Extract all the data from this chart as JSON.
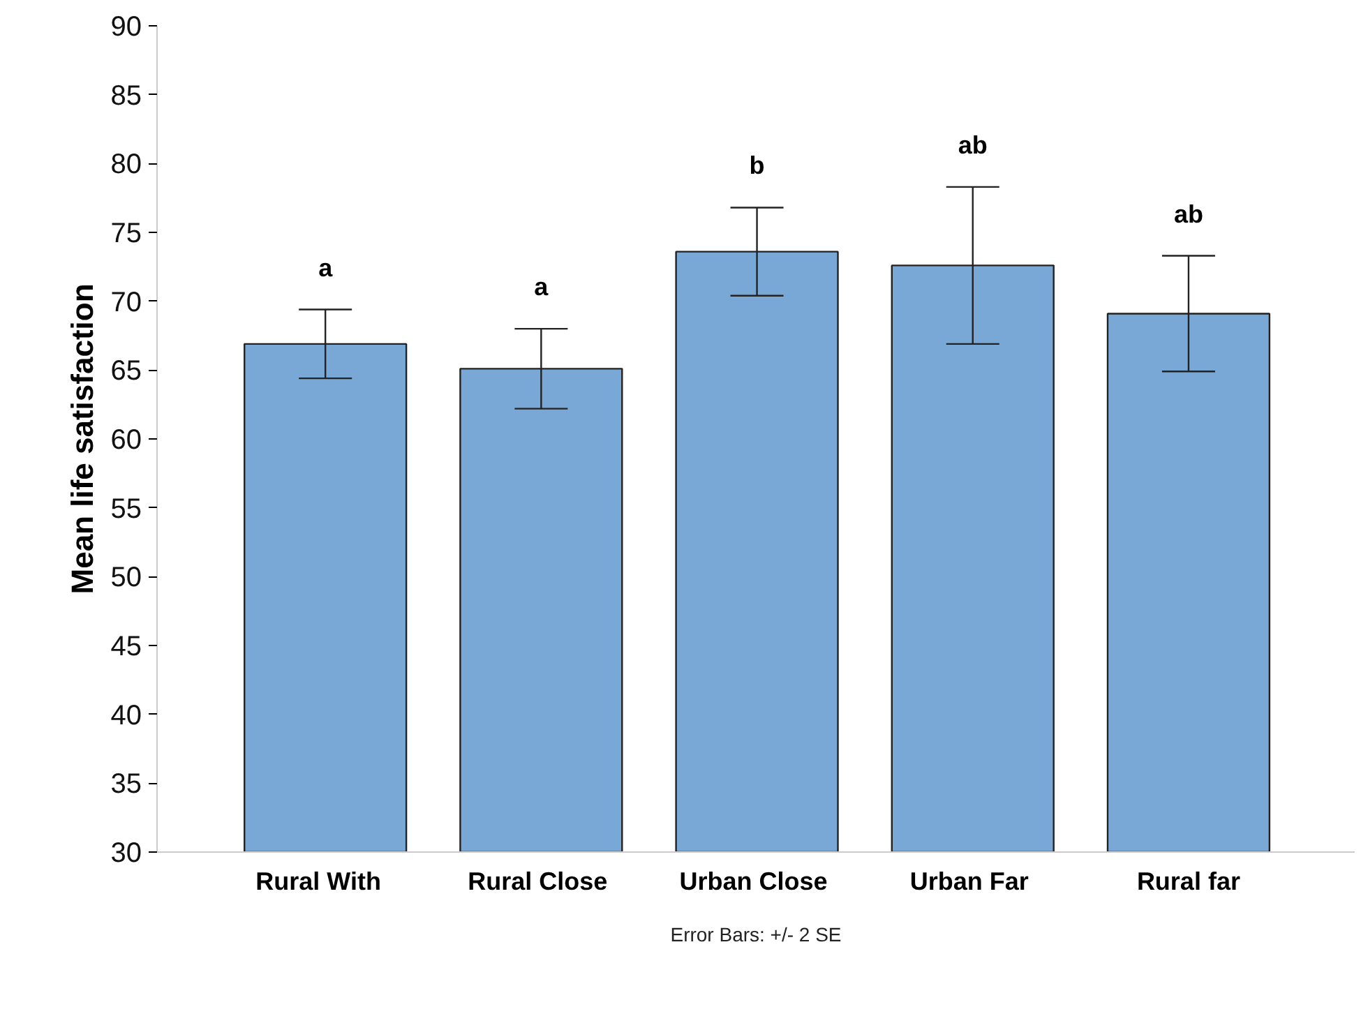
{
  "chart_data": {
    "type": "bar",
    "ylabel": "Mean life satisfaction",
    "categories": [
      "Rural   With",
      "Rural  Close",
      "Urban  Close",
      "Urban  Far",
      "Rural far"
    ],
    "values": [
      66.9,
      65.1,
      73.6,
      72.6,
      69.1
    ],
    "errors": [
      2.5,
      2.9,
      3.2,
      5.7,
      4.2
    ],
    "color": "#7aa8d6",
    "ylim": [
      30,
      90
    ],
    "yticks": [
      30,
      35,
      40,
      45,
      50,
      55,
      60,
      65,
      70,
      75,
      80,
      85,
      90
    ],
    "grid": false,
    "annotations": [
      "a",
      "a",
      "b",
      "ab",
      "ab",
      "Error Bars: +/- 2 SE"
    ]
  }
}
